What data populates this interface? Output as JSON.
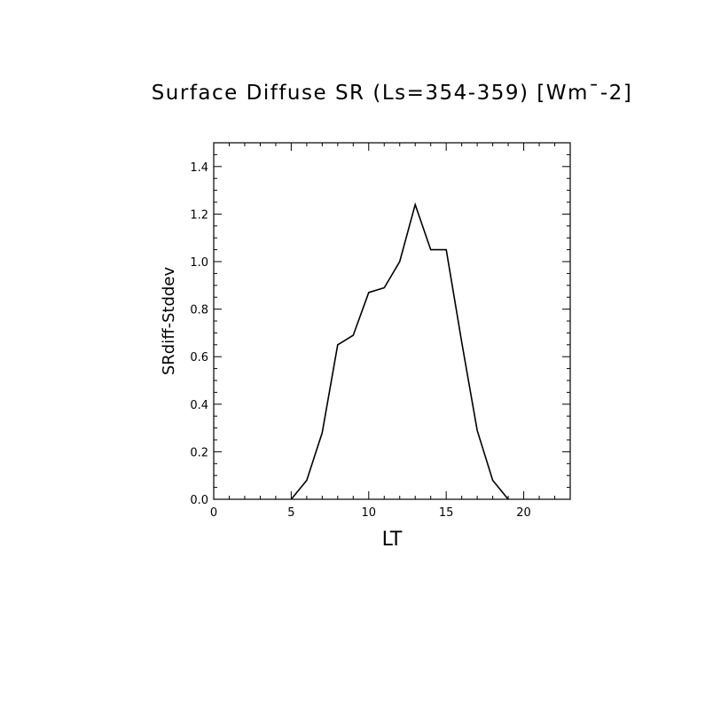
{
  "chart_data": {
    "type": "line",
    "title": "Surface Diffuse SR (Ls=354-359) [Wm¯-2]",
    "xlabel": "LT",
    "ylabel": "SRdiff-Stddev",
    "xlim": [
      0,
      23
    ],
    "ylim": [
      0,
      1.5
    ],
    "xticks": [
      "0",
      "5",
      "10",
      "15",
      "20"
    ],
    "yticks": [
      "0.0",
      "0.2",
      "0.4",
      "0.6",
      "0.8",
      "1.0",
      "1.2",
      "1.4"
    ],
    "series": [
      {
        "x": [
          5,
          6,
          7,
          8,
          9,
          10,
          11,
          12,
          13,
          14,
          15,
          16,
          17,
          18,
          19
        ],
        "y": [
          0.0,
          0.08,
          0.28,
          0.65,
          0.69,
          0.87,
          0.89,
          1.0,
          1.24,
          1.05,
          1.05,
          0.66,
          0.29,
          0.08,
          0.0
        ]
      }
    ],
    "grid": false,
    "colors": {
      "line": "#000000",
      "axes": "#000000",
      "background": "#ffffff"
    }
  }
}
